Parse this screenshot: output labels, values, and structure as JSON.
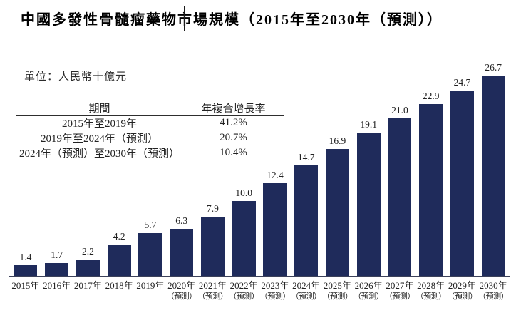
{
  "title": "中國多發性骨髓瘤藥物市場規模（2015年至2030年（預測））",
  "unit_label": "單位：人民幣十億元",
  "cagr_table": {
    "headers": {
      "period": "期間",
      "cagr": "年複合增長率"
    },
    "rows": [
      {
        "period": "2015年至2019年",
        "cagr": "41.2%"
      },
      {
        "period": "2019年至2024年（預測）",
        "cagr": "20.7%"
      },
      {
        "period": "2024年（預測）至2030年（預測）",
        "cagr": "10.4%"
      }
    ]
  },
  "chart_data": {
    "type": "bar",
    "title": "中國多發性骨髓瘤藥物市場規模（2015年至2030年（預測））",
    "ylabel": "人民幣十億元",
    "categories": [
      "2015年",
      "2016年",
      "2017年",
      "2018年",
      "2019年",
      "2020年",
      "2021年",
      "2022年",
      "2023年",
      "2024年",
      "2025年",
      "2026年",
      "2027年",
      "2028年",
      "2029年",
      "2030年"
    ],
    "forecast_suffix": "（預測）",
    "forecast_from_index": 5,
    "values": [
      1.4,
      1.7,
      2.2,
      4.2,
      5.7,
      6.3,
      7.9,
      10.0,
      12.4,
      14.7,
      16.9,
      19.1,
      21.0,
      22.9,
      24.7,
      26.7
    ],
    "labels": [
      "1.4",
      "1.7",
      "2.2",
      "4.2",
      "5.7",
      "6.3",
      "7.9",
      "10.0",
      "12.4",
      "14.7",
      "16.9",
      "19.1",
      "21.0",
      "22.9",
      "24.7",
      "26.7"
    ],
    "ylim": [
      0,
      26.7
    ],
    "bar_color": "#1f2b5b",
    "axis_color": "#3c415a",
    "grid": false,
    "legend": "none",
    "value_labels": true
  }
}
